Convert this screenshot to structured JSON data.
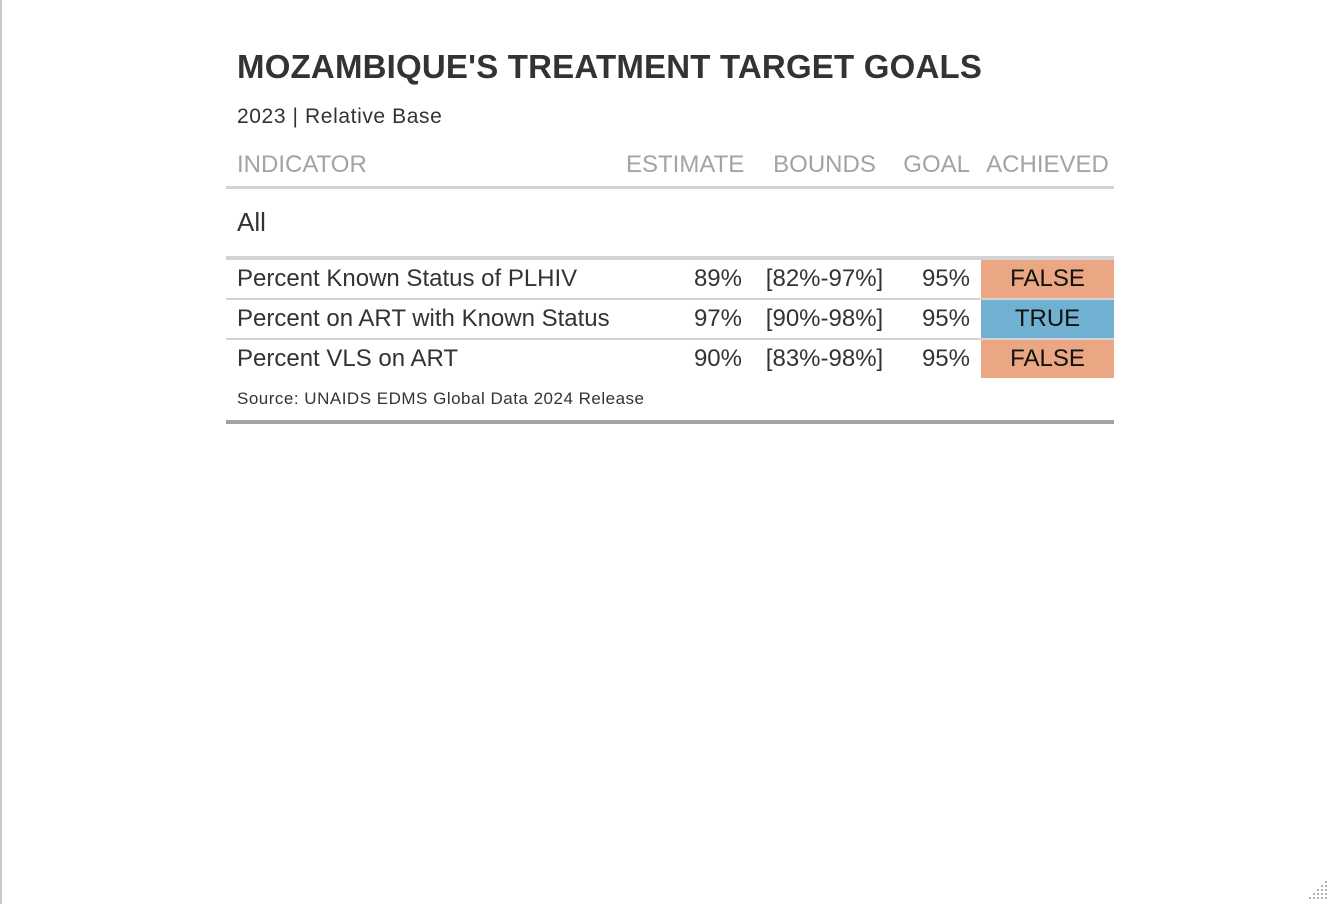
{
  "title": "MOZAMBIQUE'S TREATMENT TARGET GOALS",
  "subtitle": "2023 | Relative Base",
  "columns": {
    "indicator": "INDICATOR",
    "estimate": "ESTIMATE",
    "bounds": "BOUNDS",
    "goal": "GOAL",
    "achieved": "ACHIEVED"
  },
  "group_label": "All",
  "rows": [
    {
      "indicator": "Percent Known Status of PLHIV",
      "estimate": "89%",
      "bounds": "[82%-97%]",
      "goal": "95%",
      "achieved": "FALSE",
      "color": "#eba784"
    },
    {
      "indicator": "Percent on ART with Known Status",
      "estimate": "97%",
      "bounds": "[90%-98%]",
      "goal": "95%",
      "achieved": "TRUE",
      "color": "#70b1d1"
    },
    {
      "indicator": "Percent VLS on ART",
      "estimate": "90%",
      "bounds": "[83%-98%]",
      "goal": "95%",
      "achieved": "FALSE",
      "color": "#eba784"
    }
  ],
  "source": "Source: UNAIDS EDMS Global Data 2024 Release",
  "colors": {
    "false": "#eba784",
    "true": "#70b1d1",
    "header_text": "#a3a3a3",
    "body_text": "#333333",
    "rule": "#d3d3d3"
  }
}
